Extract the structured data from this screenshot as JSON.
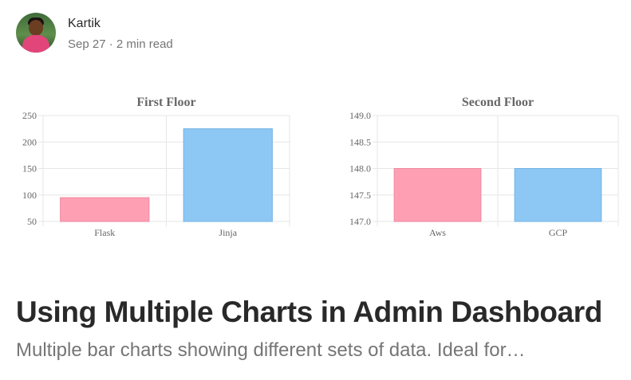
{
  "author": {
    "name": "Kartik",
    "date": "Sep 27",
    "separator": "·",
    "read_time": "2 min read"
  },
  "chart_data": [
    {
      "type": "bar",
      "title": "First Floor",
      "categories": [
        "Flask",
        "Jinja"
      ],
      "values": [
        95,
        225
      ],
      "ylim": [
        50,
        250
      ],
      "yticks": [
        50,
        100,
        150,
        200,
        250
      ],
      "tick_decimals": 0,
      "grid": true,
      "colors": [
        "#ff9fb3",
        "#8dc8f4"
      ],
      "borders": [
        "#ee8aa0",
        "#73b3e6"
      ]
    },
    {
      "type": "bar",
      "title": "Second Floor",
      "categories": [
        "Aws",
        "GCP"
      ],
      "values": [
        148.0,
        148.0
      ],
      "ylim": [
        147.0,
        149.0
      ],
      "yticks": [
        147.0,
        147.5,
        148.0,
        148.5,
        149.0
      ],
      "tick_decimals": 1,
      "grid": true,
      "colors": [
        "#ff9fb3",
        "#8dc8f4"
      ],
      "borders": [
        "#ee8aa0",
        "#73b3e6"
      ]
    }
  ],
  "article": {
    "title": "Using Multiple Charts in Admin Dashboard",
    "subtitle": "Multiple bar charts showing different sets of data. Ideal for…"
  }
}
